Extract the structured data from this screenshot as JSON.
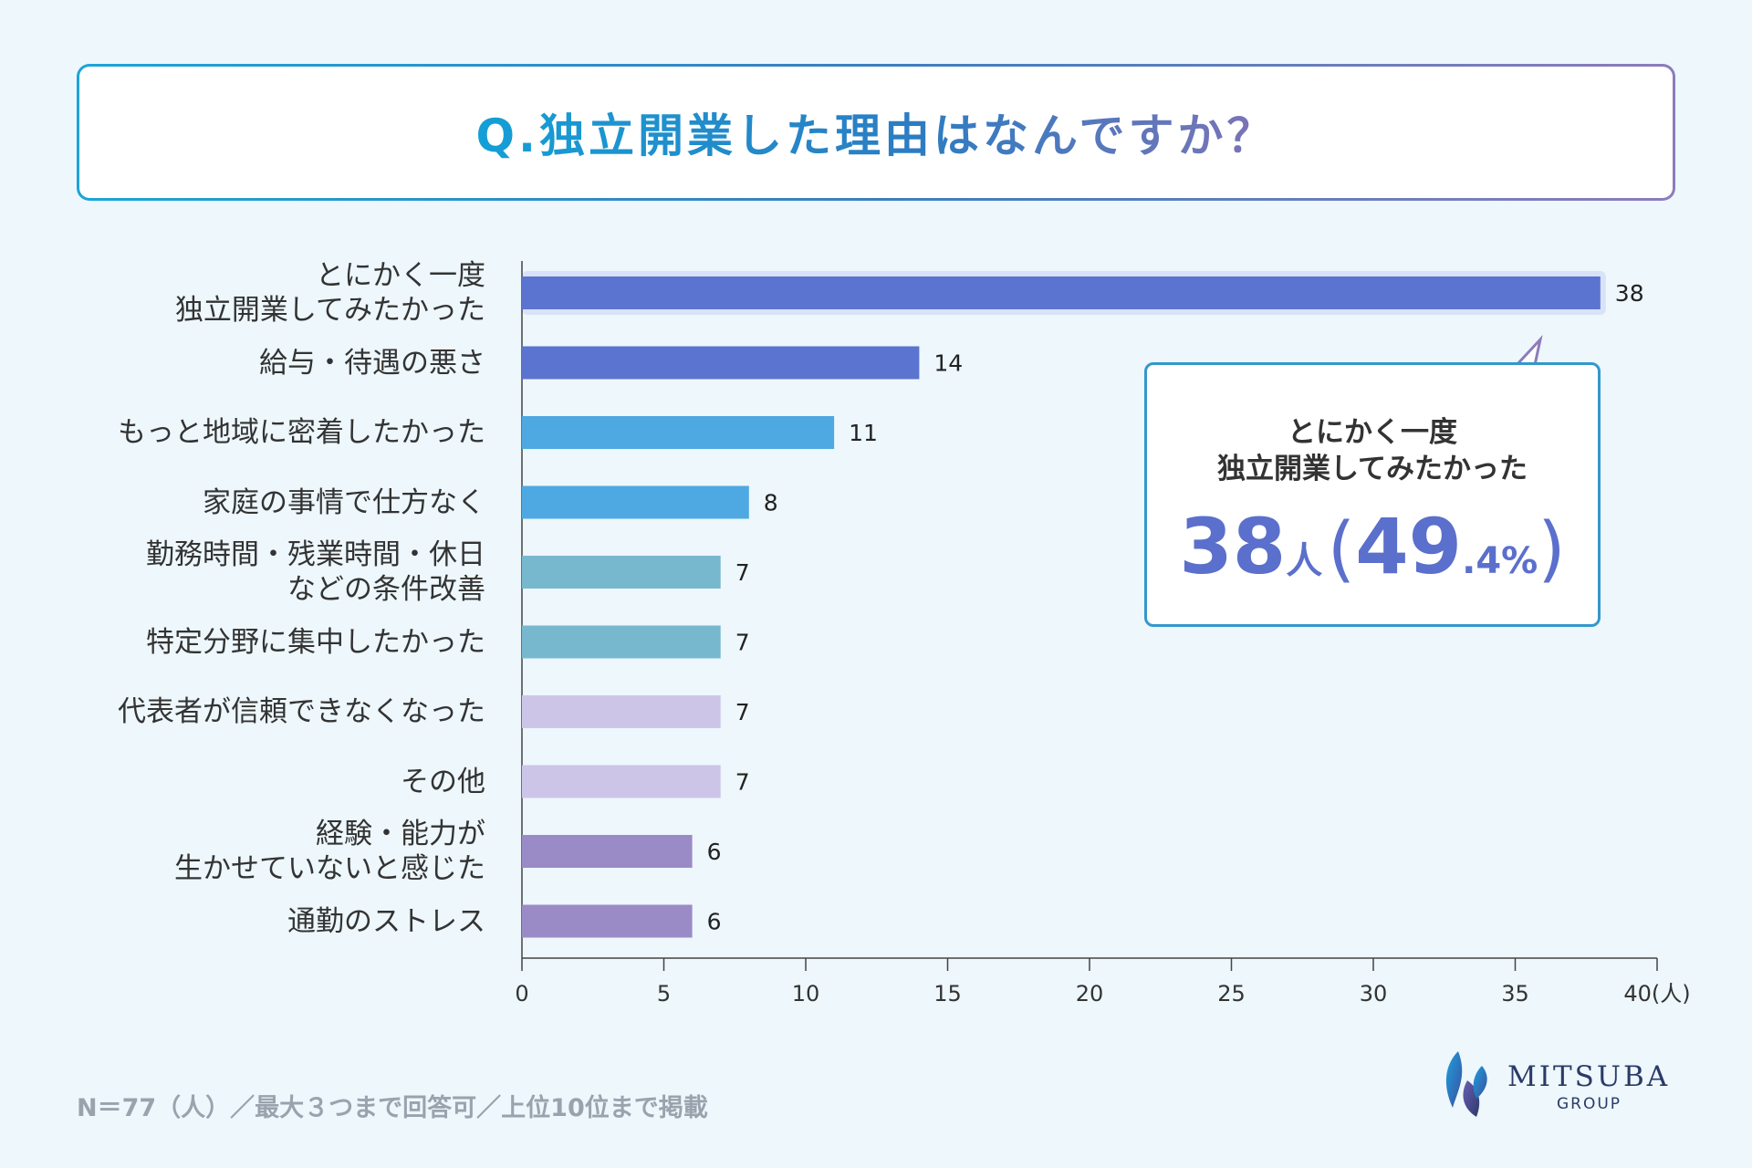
{
  "title": "Q.独立開業した理由はなんですか？",
  "chart_data": {
    "type": "bar",
    "orientation": "horizontal",
    "categories": [
      "とにかく一度\n独立開業してみたかった",
      "給与・待遇の悪さ",
      "もっと地域に密着したかった",
      "家庭の事情で仕方なく",
      "勤務時間・残業時間・休日\nなどの条件改善",
      "特定分野に集中したかった",
      "代表者が信頼できなくなった",
      "その他",
      "経験・能力が\n生かせていないと感じた",
      "通勤のストレス"
    ],
    "values": [
      38,
      14,
      11,
      8,
      7,
      7,
      7,
      7,
      6,
      6
    ],
    "colors": [
      "#5b74cf",
      "#5b74cf",
      "#4ea9e2",
      "#4ea9e2",
      "#78b8cf",
      "#78b8cf",
      "#cdc5e8",
      "#cdc5e8",
      "#9a8bc6",
      "#9a8bc6"
    ],
    "xlim": [
      0,
      40
    ],
    "xticks": [
      0,
      5,
      10,
      15,
      20,
      25,
      30,
      35,
      40
    ],
    "xunit": "(人)"
  },
  "callout": {
    "line1": "とにかく一度",
    "line2": "独立開業してみたかった",
    "count": "38",
    "count_unit": "人",
    "paren_open": "(",
    "pct_int": "49",
    "pct_dec": ".4",
    "pct_sign": "%",
    "paren_close": ")"
  },
  "footnote": "N＝77（人）／最大３つまで回答可／上位10位まで掲載",
  "logo": {
    "name": "MITSUBA",
    "sub": "GROUP"
  },
  "colors": {
    "accent": "#5b6fcc",
    "border": "#3398cc"
  }
}
